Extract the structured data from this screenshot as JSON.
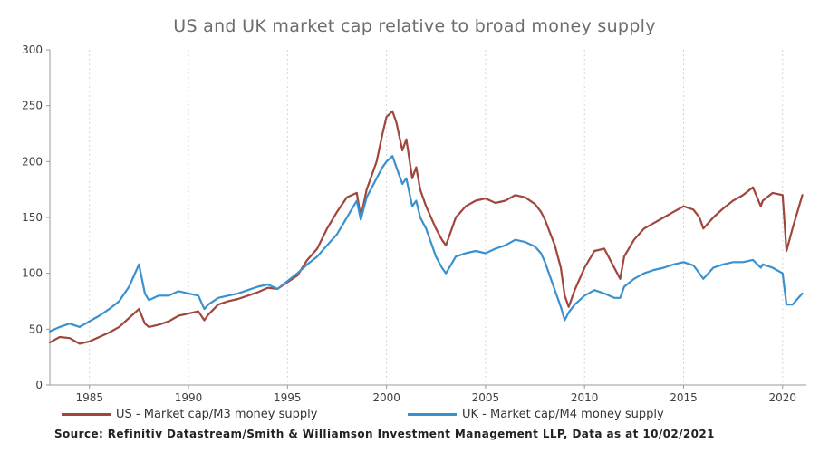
{
  "chart_data": {
    "type": "line",
    "title": "US and UK market cap relative to broad money supply",
    "xlabel": "",
    "ylabel": "",
    "xlim": [
      1983,
      2021.2
    ],
    "ylim": [
      0,
      300
    ],
    "yticks": [
      0,
      50,
      100,
      150,
      200,
      250,
      300
    ],
    "xticks": [
      1985,
      1990,
      1995,
      2000,
      2005,
      2010,
      2015,
      2020
    ],
    "xtick_labels": [
      "1985",
      "1990",
      "1995",
      "2000",
      "2005",
      "2010",
      "2015",
      "2020"
    ],
    "grid": "vertical dashed",
    "legend_position": "bottom",
    "series": [
      {
        "name": "US - Market cap/M3 money supply",
        "color": "#a0463c",
        "x": [
          1983.0,
          1983.5,
          1984.0,
          1984.5,
          1985.0,
          1985.5,
          1986.0,
          1986.5,
          1987.0,
          1987.5,
          1987.8,
          1988.0,
          1988.5,
          1989.0,
          1989.5,
          1990.0,
          1990.5,
          1990.8,
          1991.0,
          1991.5,
          1992.0,
          1992.5,
          1993.0,
          1993.5,
          1994.0,
          1994.5,
          1995.0,
          1995.5,
          1996.0,
          1996.5,
          1997.0,
          1997.5,
          1998.0,
          1998.5,
          1998.7,
          1999.0,
          1999.5,
          1999.8,
          2000.0,
          2000.3,
          2000.5,
          2000.8,
          2001.0,
          2001.3,
          2001.5,
          2001.7,
          2002.0,
          2002.5,
          2002.8,
          2003.0,
          2003.5,
          2004.0,
          2004.5,
          2005.0,
          2005.5,
          2006.0,
          2006.5,
          2007.0,
          2007.5,
          2007.8,
          2008.0,
          2008.5,
          2008.8,
          2009.0,
          2009.2,
          2009.5,
          2010.0,
          2010.5,
          2011.0,
          2011.5,
          2011.8,
          2012.0,
          2012.5,
          2013.0,
          2013.5,
          2014.0,
          2014.5,
          2015.0,
          2015.5,
          2015.8,
          2016.0,
          2016.5,
          2017.0,
          2017.5,
          2018.0,
          2018.5,
          2018.9,
          2019.0,
          2019.5,
          2020.0,
          2020.2,
          2020.5,
          2021.0
        ],
        "y": [
          38,
          43,
          42,
          37,
          39,
          43,
          47,
          52,
          60,
          68,
          55,
          52,
          54,
          57,
          62,
          64,
          66,
          58,
          63,
          72,
          75,
          77,
          80,
          83,
          87,
          86,
          92,
          98,
          112,
          122,
          140,
          155,
          168,
          172,
          150,
          175,
          200,
          225,
          240,
          245,
          235,
          210,
          220,
          185,
          195,
          175,
          160,
          140,
          130,
          125,
          150,
          160,
          165,
          167,
          163,
          165,
          170,
          168,
          162,
          155,
          148,
          125,
          105,
          80,
          70,
          85,
          105,
          120,
          122,
          105,
          95,
          115,
          130,
          140,
          145,
          150,
          155,
          160,
          157,
          150,
          140,
          150,
          158,
          165,
          170,
          177,
          160,
          165,
          172,
          170,
          120,
          140,
          170
        ]
      },
      {
        "name": "UK - Market cap/M4 money supply",
        "color": "#3a91cf",
        "x": [
          1983.0,
          1983.5,
          1984.0,
          1984.5,
          1985.0,
          1985.5,
          1986.0,
          1986.5,
          1987.0,
          1987.5,
          1987.8,
          1988.0,
          1988.5,
          1989.0,
          1989.5,
          1990.0,
          1990.5,
          1990.8,
          1991.0,
          1991.5,
          1992.0,
          1992.5,
          1993.0,
          1993.5,
          1994.0,
          1994.5,
          1995.0,
          1995.5,
          1996.0,
          1996.5,
          1997.0,
          1997.5,
          1998.0,
          1998.5,
          1998.7,
          1999.0,
          1999.5,
          1999.8,
          2000.0,
          2000.3,
          2000.5,
          2000.8,
          2001.0,
          2001.3,
          2001.5,
          2001.7,
          2002.0,
          2002.5,
          2002.8,
          2003.0,
          2003.5,
          2004.0,
          2004.5,
          2005.0,
          2005.5,
          2006.0,
          2006.5,
          2007.0,
          2007.5,
          2007.8,
          2008.0,
          2008.5,
          2008.8,
          2009.0,
          2009.2,
          2009.5,
          2010.0,
          2010.5,
          2011.0,
          2011.5,
          2011.8,
          2012.0,
          2012.5,
          2013.0,
          2013.5,
          2014.0,
          2014.5,
          2015.0,
          2015.5,
          2015.8,
          2016.0,
          2016.5,
          2017.0,
          2017.5,
          2018.0,
          2018.5,
          2018.9,
          2019.0,
          2019.5,
          2020.0,
          2020.2,
          2020.5,
          2021.0
        ],
        "y": [
          48,
          52,
          55,
          52,
          57,
          62,
          68,
          75,
          88,
          108,
          82,
          76,
          80,
          80,
          84,
          82,
          80,
          68,
          72,
          78,
          80,
          82,
          85,
          88,
          90,
          86,
          93,
          100,
          108,
          115,
          125,
          135,
          150,
          165,
          148,
          168,
          185,
          195,
          200,
          205,
          195,
          180,
          185,
          160,
          165,
          150,
          140,
          115,
          105,
          100,
          115,
          118,
          120,
          118,
          122,
          125,
          130,
          128,
          124,
          118,
          110,
          85,
          70,
          58,
          65,
          72,
          80,
          85,
          82,
          78,
          78,
          88,
          95,
          100,
          103,
          105,
          108,
          110,
          107,
          100,
          95,
          105,
          108,
          110,
          110,
          112,
          105,
          108,
          105,
          100,
          72,
          72,
          82
        ]
      }
    ],
    "source": "Source: Refinitiv Datastream/Smith & Williamson Investment Management LLP, Data as at 10/02/2021"
  }
}
